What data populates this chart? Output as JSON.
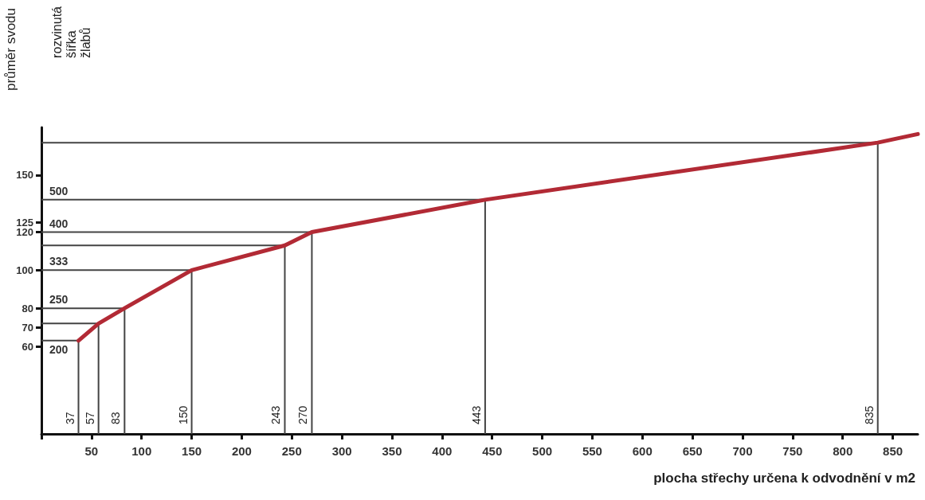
{
  "chart_data": {
    "type": "line",
    "xlabel": "plocha střechy určena k odvodnění v m2",
    "ylabel": "průměr svodu",
    "x": [
      37,
      57,
      83,
      150,
      243,
      270,
      443,
      835,
      875
    ],
    "series": [
      {
        "color": "#b22a35",
        "values": [
          63,
          72,
          80,
          100,
          113,
          120,
          137,
          167,
          171.5
        ]
      },
      {
        "color": "#444444",
        "x": [
          0,
          37,
          37
        ],
        "values": [
          63,
          63,
          14
        ]
      },
      {
        "color": "#444444",
        "x": [
          0,
          57,
          57
        ],
        "values": [
          72,
          72,
          14
        ]
      },
      {
        "color": "#444444",
        "x": [
          0,
          83,
          83
        ],
        "values": [
          80,
          80,
          14
        ]
      },
      {
        "color": "#444444",
        "x": [
          0,
          150,
          150
        ],
        "values": [
          100,
          100,
          14
        ]
      },
      {
        "color": "#444444",
        "x": [
          0,
          243,
          243
        ],
        "values": [
          113,
          113,
          14
        ]
      },
      {
        "color": "#444444",
        "x": [
          0,
          270,
          270
        ],
        "values": [
          120,
          120,
          14
        ]
      },
      {
        "color": "#444444",
        "x": [
          0,
          443,
          443
        ],
        "values": [
          137,
          137,
          14
        ]
      },
      {
        "color": "#444444",
        "x": [
          0,
          835,
          835
        ],
        "values": [
          167,
          167,
          14
        ]
      }
    ],
    "xlim": [
      0,
      875
    ],
    "xticks": [
      {
        "value": 0,
        "label": null
      },
      50,
      100,
      150,
      200,
      250,
      300,
      350,
      400,
      450,
      500,
      550,
      600,
      650,
      700,
      750,
      800,
      850
    ],
    "ylim": [
      14,
      175
    ],
    "yticks": [
      60,
      70,
      80,
      100,
      120,
      125,
      150
    ],
    "annotations": [
      "rozvinutá šířka žlabů",
      {
        "text": "200",
        "x": 0,
        "y": 63
      },
      {
        "text": "250",
        "x": 0,
        "y": 80
      },
      {
        "text": "333",
        "x": 0,
        "y": 100
      },
      {
        "text": "400",
        "x": 0,
        "y": 120
      },
      {
        "text": "500",
        "x": 0,
        "y": 137
      },
      {
        "text": "37",
        "x": 37,
        "y": 14
      },
      {
        "text": "57",
        "x": 57,
        "y": 14
      },
      {
        "text": "83",
        "x": 83,
        "y": 14
      },
      {
        "text": "150",
        "x": 150,
        "y": 14
      },
      {
        "text": "243",
        "x": 243,
        "y": 14
      },
      {
        "text": "270",
        "x": 270,
        "y": 14
      },
      {
        "text": "443",
        "x": 443,
        "y": 14
      },
      {
        "text": "835",
        "x": 835,
        "y": 14
      }
    ],
    "grid": false,
    "marker": "none",
    "line_style": "solid"
  }
}
